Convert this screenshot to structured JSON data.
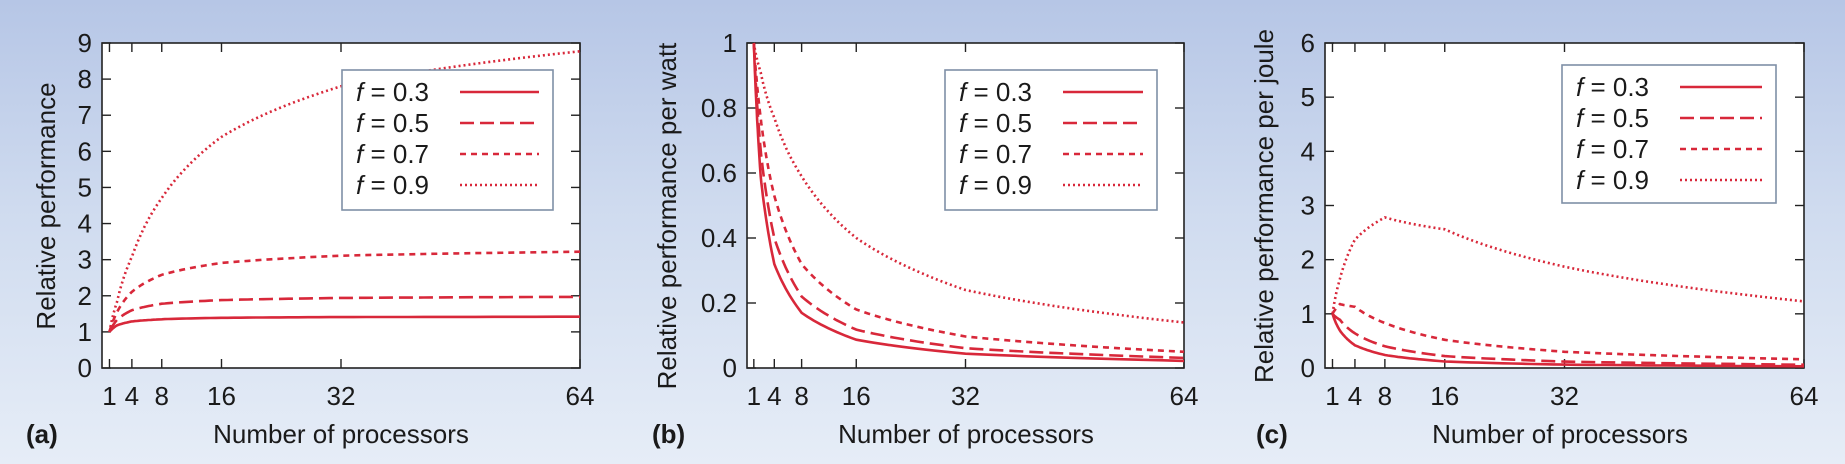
{
  "colors": {
    "series": "#d8283a",
    "axis": "#222222",
    "legend_border": "#7f8fa6"
  },
  "chart_data": [
    {
      "type": "line",
      "panel_label": "(a)",
      "xlabel": "Number of processors",
      "ylabel": "Relative performance",
      "xlim": [
        0,
        64
      ],
      "ylim": [
        0,
        9
      ],
      "xticks": [
        1,
        4,
        8,
        16,
        32,
        64
      ],
      "yticks": [
        0,
        1,
        2,
        3,
        4,
        5,
        6,
        7,
        8,
        9
      ],
      "grid": false,
      "legend_position": "top-right",
      "series": [
        {
          "name": "f = 0.3",
          "style": "solid",
          "points": [
            [
              1,
              1
            ],
            [
              2,
              1.18
            ],
            [
              4,
              1.29
            ],
            [
              8,
              1.35
            ],
            [
              16,
              1.39
            ],
            [
              32,
              1.41
            ],
            [
              64,
              1.42
            ]
          ]
        },
        {
          "name": "f = 0.5",
          "style": "dashed",
          "points": [
            [
              1,
              1
            ],
            [
              2,
              1.33
            ],
            [
              4,
              1.6
            ],
            [
              8,
              1.78
            ],
            [
              16,
              1.88
            ],
            [
              32,
              1.94
            ],
            [
              64,
              1.97
            ]
          ]
        },
        {
          "name": "f = 0.7",
          "style": "dotted",
          "points": [
            [
              1,
              1
            ],
            [
              2,
              1.54
            ],
            [
              4,
              2.11
            ],
            [
              8,
              2.58
            ],
            [
              16,
              2.91
            ],
            [
              32,
              3.11
            ],
            [
              64,
              3.22
            ]
          ]
        },
        {
          "name": "f = 0.9",
          "style": "fine-dotted",
          "points": [
            [
              1,
              1
            ],
            [
              2,
              1.82
            ],
            [
              4,
              3.08
            ],
            [
              8,
              4.71
            ],
            [
              16,
              6.4
            ],
            [
              32,
              7.8
            ],
            [
              64,
              8.77
            ]
          ]
        }
      ]
    },
    {
      "type": "line",
      "panel_label": "(b)",
      "xlabel": "Number of processors",
      "ylabel": "Relative performance per watt",
      "xlim": [
        0,
        64
      ],
      "ylim": [
        0,
        1
      ],
      "xticks": [
        1,
        4,
        8,
        16,
        32,
        64
      ],
      "yticks": [
        0,
        0.2,
        0.4,
        0.6,
        0.8,
        1
      ],
      "grid": false,
      "legend_position": "top-right",
      "series": [
        {
          "name": "f = 0.3",
          "style": "solid",
          "points": [
            [
              1,
              1
            ],
            [
              2,
              0.59
            ],
            [
              4,
              0.32
            ],
            [
              8,
              0.17
            ],
            [
              16,
              0.087
            ],
            [
              32,
              0.044
            ],
            [
              64,
              0.022
            ]
          ]
        },
        {
          "name": "f = 0.5",
          "style": "dashed",
          "points": [
            [
              1,
              1
            ],
            [
              2,
              0.67
            ],
            [
              4,
              0.4
            ],
            [
              8,
              0.22
            ],
            [
              16,
              0.118
            ],
            [
              32,
              0.061
            ],
            [
              64,
              0.031
            ]
          ]
        },
        {
          "name": "f = 0.7",
          "style": "dotted",
          "points": [
            [
              1,
              1
            ],
            [
              2,
              0.77
            ],
            [
              4,
              0.53
            ],
            [
              8,
              0.32
            ],
            [
              16,
              0.18
            ],
            [
              32,
              0.097
            ],
            [
              64,
              0.05
            ]
          ]
        },
        {
          "name": "f = 0.9",
          "style": "fine-dotted",
          "points": [
            [
              1,
              1
            ],
            [
              2,
              0.91
            ],
            [
              4,
              0.77
            ],
            [
              8,
              0.59
            ],
            [
              16,
              0.4
            ],
            [
              32,
              0.24
            ],
            [
              64,
              0.14
            ]
          ]
        }
      ]
    },
    {
      "type": "line",
      "panel_label": "(c)",
      "xlabel": "Number of processors",
      "ylabel": "Relative performance per joule",
      "xlim": [
        0,
        64
      ],
      "ylim": [
        0,
        6
      ],
      "xticks": [
        1,
        4,
        8,
        16,
        32,
        64
      ],
      "yticks": [
        0,
        1,
        2,
        3,
        4,
        5,
        6
      ],
      "grid": false,
      "legend_position": "top-right",
      "series": [
        {
          "name": "f = 0.3",
          "style": "solid",
          "points": [
            [
              1,
              1
            ],
            [
              2,
              0.69
            ],
            [
              4,
              0.42
            ],
            [
              8,
              0.24
            ],
            [
              16,
              0.12
            ],
            [
              32,
              0.062
            ],
            [
              64,
              0.031
            ]
          ]
        },
        {
          "name": "f = 0.5",
          "style": "dashed",
          "points": [
            [
              1,
              1
            ],
            [
              2,
              0.89
            ],
            [
              4,
              0.64
            ],
            [
              8,
              0.4
            ],
            [
              16,
              0.22
            ],
            [
              32,
              0.118
            ],
            [
              64,
              0.061
            ]
          ]
        },
        {
          "name": "f = 0.7",
          "style": "dotted",
          "points": [
            [
              1,
              1
            ],
            [
              2,
              1.18
            ],
            [
              4,
              1.13
            ],
            [
              8,
              0.83
            ],
            [
              16,
              0.52
            ],
            [
              32,
              0.3
            ],
            [
              64,
              0.16
            ]
          ]
        },
        {
          "name": "f = 0.9",
          "style": "fine-dotted",
          "points": [
            [
              1,
              1
            ],
            [
              2,
              1.65
            ],
            [
              4,
              2.37
            ],
            [
              8,
              2.78
            ],
            [
              16,
              2.56
            ],
            [
              32,
              1.87
            ],
            [
              64,
              1.23
            ]
          ]
        }
      ]
    }
  ]
}
